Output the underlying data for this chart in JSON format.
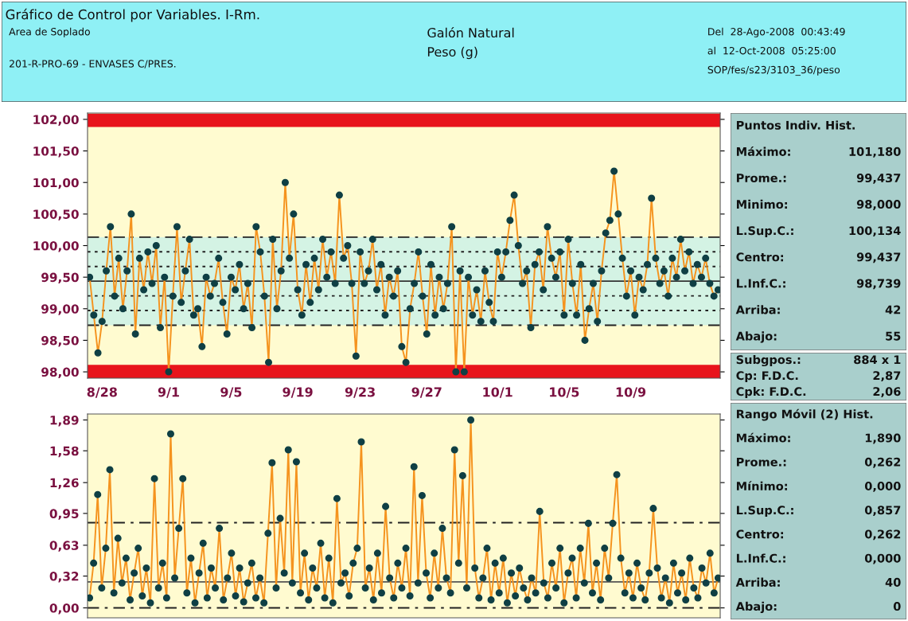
{
  "chart_data": [
    {
      "type": "line",
      "title": "Gráfico de Control por Variables. I-Rm.",
      "subtitle": "Galón Natural",
      "annotations": [
        "Area de Soplado",
        "201-R-PRO-69 - ENVASES C/PRES.",
        "Peso (g)",
        "Del  28-Ago-2008  00:43:49",
        "al  12-Oct-2008  05:25:00",
        "SOP/fes/s23/3103_36/peso"
      ],
      "marker": "circle",
      "grid": false,
      "legend": false,
      "categories": [
        null,
        null,
        null,
        "8/28",
        null,
        null,
        null,
        null,
        null,
        null,
        null,
        null,
        null,
        null,
        null,
        null,
        null,
        null,
        null,
        "9/1",
        null,
        null,
        null,
        null,
        null,
        null,
        null,
        null,
        null,
        null,
        null,
        null,
        null,
        null,
        "9/5",
        null,
        null,
        null,
        null,
        null,
        null,
        null,
        null,
        null,
        null,
        null,
        null,
        null,
        null,
        null,
        "9/19",
        null,
        null,
        null,
        null,
        null,
        null,
        null,
        null,
        null,
        null,
        null,
        null,
        null,
        null,
        "9/23",
        null,
        null,
        null,
        null,
        null,
        null,
        null,
        null,
        null,
        null,
        null,
        null,
        null,
        null,
        null,
        "9/27",
        null,
        null,
        null,
        null,
        null,
        null,
        null,
        null,
        null,
        null,
        null,
        null,
        null,
        null,
        null,
        null,
        "10/1",
        null,
        null,
        null,
        null,
        null,
        null,
        null,
        null,
        null,
        null,
        null,
        null,
        null,
        null,
        null,
        "10/5",
        null,
        null,
        null,
        null,
        null,
        null,
        null,
        null,
        null,
        null,
        null,
        null,
        null,
        null,
        null,
        "10/9",
        null,
        null,
        null,
        null,
        null,
        null,
        null,
        null,
        null,
        null,
        null,
        null,
        null,
        null,
        null,
        null,
        null,
        null,
        null,
        null,
        null
      ],
      "ylim": [
        97.9,
        102.1
      ],
      "yticks": [
        {
          "value": 98,
          "label": "98,00"
        },
        {
          "value": 98.5,
          "label": "98,50"
        },
        {
          "value": 99,
          "label": "99,00"
        },
        {
          "value": 99.5,
          "label": "99,50"
        },
        {
          "value": 100,
          "label": "100,00"
        },
        {
          "value": 100.5,
          "label": "100,50"
        },
        {
          "value": 101,
          "label": "101,00"
        },
        {
          "value": 101.5,
          "label": "101,50"
        },
        {
          "value": 102,
          "label": "102,00"
        }
      ],
      "bands": [
        {
          "axis": "y",
          "from": 98.739,
          "to": 100.134,
          "color": "#d4f3e4"
        },
        {
          "axis": "y",
          "from": 101.88,
          "to": 102.09,
          "color": "#e8141c"
        },
        {
          "axis": "y",
          "from": 97.9,
          "to": 98.11,
          "color": "#e8141c"
        }
      ],
      "ref_lines": [
        {
          "axis": "y",
          "value": 100.134,
          "line_style": "dashed",
          "color": "#222222"
        },
        {
          "axis": "y",
          "value": 99.902,
          "line_style": "dotted",
          "color": "#222222"
        },
        {
          "axis": "y",
          "value": 99.669,
          "line_style": "dotted",
          "color": "#222222"
        },
        {
          "axis": "y",
          "value": 99.437,
          "line_style": "solid",
          "color": "#333333"
        },
        {
          "axis": "y",
          "value": 99.205,
          "line_style": "dotted",
          "color": "#222222"
        },
        {
          "axis": "y",
          "value": 98.972,
          "line_style": "dotted",
          "color": "#222222"
        },
        {
          "axis": "y",
          "value": 98.739,
          "line_style": "dashed",
          "color": "#222222"
        }
      ],
      "series": [
        {
          "color": "#f5931e",
          "values": [
            99.5,
            98.9,
            98.3,
            98.8,
            99.6,
            100.3,
            99.2,
            99.8,
            99.0,
            99.6,
            100.5,
            98.6,
            99.8,
            99.3,
            99.9,
            99.4,
            100.0,
            98.7,
            99.5,
            98.0,
            99.2,
            100.3,
            99.1,
            99.6,
            100.1,
            98.9,
            99.0,
            98.4,
            99.5,
            99.2,
            99.4,
            99.8,
            99.1,
            98.6,
            99.5,
            99.3,
            99.7,
            99.0,
            99.4,
            98.7,
            100.3,
            99.9,
            99.2,
            98.15,
            100.1,
            99.0,
            99.6,
            101.0,
            99.8,
            100.5,
            99.3,
            98.9,
            99.7,
            99.1,
            99.8,
            99.3,
            100.1,
            99.5,
            99.9,
            99.4,
            100.8,
            99.8,
            100.0,
            99.4,
            98.25,
            99.9,
            99.4,
            99.6,
            100.1,
            99.3,
            99.7,
            98.9,
            99.5,
            99.2,
            99.6,
            98.4,
            98.15,
            99.0,
            99.4,
            99.9,
            99.2,
            98.6,
            99.7,
            98.9,
            99.5,
            99.0,
            99.4,
            100.3,
            98.0,
            99.6,
            98.0,
            99.5,
            98.9,
            99.3,
            98.8,
            99.6,
            99.1,
            98.8,
            99.9,
            99.5,
            99.9,
            100.4,
            100.8,
            100.0,
            99.4,
            99.6,
            98.7,
            99.7,
            99.9,
            99.3,
            100.3,
            99.8,
            99.5,
            99.9,
            98.9,
            100.1,
            99.4,
            98.9,
            99.7,
            98.5,
            99.0,
            99.4,
            98.8,
            99.6,
            100.2,
            100.4,
            101.18,
            100.5,
            99.8,
            99.2,
            99.6,
            98.9,
            99.5,
            99.3,
            99.7,
            100.75,
            99.8,
            99.4,
            99.6,
            99.2,
            99.8,
            99.5,
            100.1,
            99.6,
            99.9,
            99.4,
            99.7,
            99.5,
            99.8,
            99.4,
            99.2,
            99.3
          ]
        }
      ]
    },
    {
      "type": "line",
      "marker": "circle",
      "grid": false,
      "legend": false,
      "tick_labels": "y",
      "categories": [
        null,
        null,
        null,
        null,
        null,
        null,
        null,
        null,
        null,
        null,
        null,
        null,
        null,
        null,
        null,
        null,
        null,
        null,
        null,
        null,
        null,
        null,
        null,
        null,
        null,
        null,
        null,
        null,
        null,
        null,
        null,
        null,
        null,
        null,
        null,
        null,
        null,
        null,
        null,
        null,
        null,
        null,
        null,
        null,
        null,
        null,
        null,
        null,
        null,
        null,
        null,
        null,
        null,
        null,
        null,
        null,
        null,
        null,
        null,
        null,
        null,
        null,
        null,
        null,
        null,
        null,
        null,
        null,
        null,
        null,
        null,
        null,
        null,
        null,
        null,
        null,
        null,
        null,
        null,
        null,
        null,
        null,
        null,
        null,
        null,
        null,
        null,
        null,
        null,
        null,
        null,
        null,
        null,
        null,
        null,
        null,
        null,
        null,
        null,
        null,
        null,
        null,
        null,
        null,
        null,
        null,
        null,
        null,
        null,
        null,
        null,
        null,
        null,
        null,
        null,
        null,
        null,
        null,
        null,
        null,
        null,
        null,
        null,
        null,
        null,
        null,
        null,
        null,
        null,
        null,
        null,
        null,
        null,
        null,
        null,
        null,
        null,
        null,
        null,
        null,
        null,
        null,
        null,
        null,
        null,
        null,
        null,
        null,
        null,
        null,
        null,
        null,
        null,
        null,
        null,
        null
      ],
      "ylim": [
        -0.1,
        1.95
      ],
      "yticks": [
        {
          "value": 0,
          "label": "0,00"
        },
        {
          "value": 0.32,
          "label": "0,32"
        },
        {
          "value": 0.63,
          "label": "0,63"
        },
        {
          "value": 0.95,
          "label": "0,95"
        },
        {
          "value": 1.26,
          "label": "1,26"
        },
        {
          "value": 1.58,
          "label": "1,58"
        },
        {
          "value": 1.89,
          "label": "1,89"
        }
      ],
      "ref_lines": [
        {
          "axis": "y",
          "value": 0.857,
          "line_style": "dashed",
          "color": "#222222"
        },
        {
          "axis": "y",
          "value": 0.262,
          "line_style": "solid",
          "color": "#555555"
        },
        {
          "axis": "y",
          "value": 0.0,
          "line_style": "dashed",
          "color": "#222222"
        }
      ],
      "series": [
        {
          "color": "#f5931e",
          "values": [
            0.1,
            0.45,
            1.14,
            0.2,
            0.6,
            1.39,
            0.15,
            0.7,
            0.25,
            0.5,
            0.08,
            0.35,
            0.6,
            0.12,
            0.4,
            0.05,
            1.3,
            0.2,
            0.45,
            0.1,
            1.75,
            0.3,
            0.8,
            1.3,
            0.15,
            0.5,
            0.05,
            0.35,
            0.65,
            0.1,
            0.4,
            0.2,
            0.8,
            0.08,
            0.3,
            0.55,
            0.12,
            0.4,
            0.06,
            0.25,
            0.45,
            0.1,
            0.3,
            0.05,
            0.75,
            1.46,
            0.2,
            0.9,
            0.35,
            1.59,
            0.25,
            1.47,
            0.15,
            0.55,
            0.08,
            0.4,
            0.2,
            0.65,
            0.1,
            0.5,
            0.05,
            1.1,
            0.25,
            0.35,
            0.12,
            0.45,
            0.6,
            1.67,
            0.2,
            0.4,
            0.08,
            0.55,
            0.15,
            1.02,
            0.3,
            0.1,
            0.45,
            0.2,
            0.6,
            0.12,
            1.42,
            0.25,
            1.13,
            0.35,
            0.1,
            0.55,
            0.2,
            0.8,
            0.3,
            0.15,
            1.59,
            0.45,
            1.33,
            0.2,
            1.89,
            0.4,
            0.1,
            0.3,
            0.6,
            0.08,
            0.45,
            0.15,
            0.5,
            0.05,
            0.35,
            0.12,
            0.4,
            0.2,
            0.08,
            0.3,
            0.15,
            0.97,
            0.25,
            0.1,
            0.45,
            0.2,
            0.6,
            0.05,
            0.35,
            0.5,
            0.1,
            0.6,
            0.25,
            0.85,
            0.15,
            0.45,
            0.08,
            0.6,
            0.3,
            0.85,
            1.34,
            0.5,
            0.15,
            0.35,
            0.1,
            0.45,
            0.2,
            0.08,
            0.35,
            1.0,
            0.4,
            0.1,
            0.3,
            0.05,
            0.45,
            0.15,
            0.35,
            0.08,
            0.5,
            0.2,
            0.1,
            0.4,
            0.25,
            0.55,
            0.15,
            0.3
          ]
        }
      ]
    },
    {
      "type": "other",
      "title": "Puntos Indiv. Hist.",
      "annotations": [
        "Máximo:",
        "101,180",
        "Prome.:",
        "99,437",
        "Minimo:",
        "98,000",
        "L.Sup.C.:",
        "100,134",
        "Centro:",
        "99,437",
        "L.Inf.C.:",
        "98,739",
        "Arriba:",
        "42",
        "Abajo:",
        "55"
      ]
    },
    {
      "type": "other",
      "annotations": [
        "Subgpos.:",
        "884 x 1",
        "Cp: F.D.C.",
        "2,87",
        "Cpk: F.D.C.",
        "2,06"
      ]
    },
    {
      "type": "other",
      "title": "Rango Móvil (2) Hist.",
      "annotations": [
        "Máximo:",
        "1,890",
        "Prome.:",
        "0,262",
        "Mínimo:",
        "0,000",
        "L.Sup.C.:",
        "0,857",
        "Centro:",
        "0,262",
        "L.Inf.C.:",
        "0,000",
        "Arriba:",
        "40",
        "Abajo:",
        "0"
      ]
    }
  ]
}
